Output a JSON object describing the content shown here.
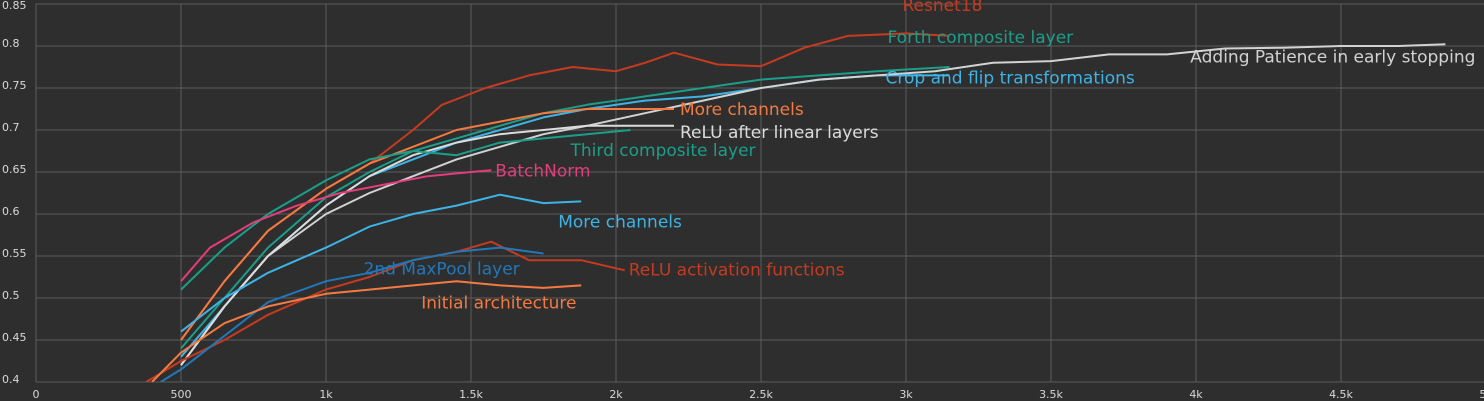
{
  "chart_data": {
    "type": "line",
    "grid": true,
    "xlim": [
      0,
      5000
    ],
    "xticks": [
      0,
      500,
      {
        "value": 1000,
        "label": "1k"
      },
      {
        "value": 1500,
        "label": "1.5k"
      },
      {
        "value": 2000,
        "label": "2k"
      },
      {
        "value": 2500,
        "label": "2.5k"
      },
      {
        "value": 3000,
        "label": "3k"
      },
      {
        "value": 3500,
        "label": "3.5k"
      },
      {
        "value": 4000,
        "label": "4k"
      },
      {
        "value": 4500,
        "label": "4.5k"
      },
      {
        "value": 5000,
        "label": "5k"
      }
    ],
    "ylim": [
      0.4,
      0.85
    ],
    "yticks": [
      0.4,
      0.45,
      0.5,
      0.55,
      0.6,
      0.65,
      0.7,
      0.75,
      0.8,
      0.85
    ],
    "series": [
      {
        "name": "Resnet18",
        "color": "#c63b1f",
        "x": [
          500,
          650,
          800,
          1000,
          1150,
          1300,
          1400,
          1550,
          1700,
          1850,
          2000,
          2100,
          2200,
          2350,
          2500,
          2650,
          2800,
          3000,
          3150
        ],
        "values": [
          0.45,
          0.52,
          0.58,
          0.63,
          0.66,
          0.7,
          0.73,
          0.75,
          0.765,
          0.775,
          0.77,
          0.78,
          0.792,
          0.778,
          0.776,
          0.798,
          0.812,
          0.815,
          0.812
        ]
      },
      {
        "name": "Forth composite layer",
        "color": "#1b9e8a",
        "x": [
          500,
          650,
          800,
          1000,
          1150,
          1300,
          1450,
          1600,
          1750,
          1900,
          2100,
          2300,
          2500,
          2700,
          2900,
          3150
        ],
        "values": [
          0.44,
          0.5,
          0.56,
          0.62,
          0.65,
          0.675,
          0.69,
          0.705,
          0.72,
          0.73,
          0.74,
          0.75,
          0.76,
          0.765,
          0.77,
          0.775
        ]
      },
      {
        "name": "Crop and flip transformations",
        "color": "#3cb4e6",
        "x": [
          500,
          650,
          800,
          1000,
          1150,
          1300,
          1450,
          1600,
          1750,
          1900,
          2100,
          2300,
          2500,
          2700,
          2900,
          3150
        ],
        "values": [
          0.43,
          0.49,
          0.55,
          0.61,
          0.645,
          0.665,
          0.685,
          0.7,
          0.715,
          0.725,
          0.735,
          0.74,
          0.75,
          0.76,
          0.765,
          0.765
        ]
      },
      {
        "name": "Adding Patience in early stopping",
        "color": "#d2d2d2",
        "x": [
          500,
          650,
          800,
          1000,
          1150,
          1300,
          1450,
          1600,
          1750,
          1900,
          2100,
          2300,
          2500,
          2700,
          2900,
          3100,
          3300,
          3500,
          3700,
          3900,
          4100,
          4300,
          4500,
          4700,
          4860
        ],
        "values": [
          0.42,
          0.49,
          0.55,
          0.6,
          0.625,
          0.645,
          0.665,
          0.68,
          0.695,
          0.705,
          0.72,
          0.735,
          0.75,
          0.76,
          0.765,
          0.77,
          0.78,
          0.782,
          0.79,
          0.79,
          0.797,
          0.798,
          0.8,
          0.8,
          0.802
        ]
      },
      {
        "name": "More channels",
        "color": "#f47a42",
        "x": [
          500,
          650,
          800,
          1000,
          1150,
          1300,
          1450,
          1600,
          1750,
          1900,
          2050,
          2200
        ],
        "values": [
          0.45,
          0.52,
          0.58,
          0.63,
          0.66,
          0.68,
          0.7,
          0.71,
          0.72,
          0.725,
          0.725,
          0.725
        ]
      },
      {
        "name": "ReLU after linear layers",
        "color": "#dcdcdc",
        "x": [
          500,
          650,
          800,
          1000,
          1150,
          1300,
          1450,
          1600,
          1750,
          1900,
          2050,
          2200
        ],
        "values": [
          0.42,
          0.49,
          0.55,
          0.61,
          0.645,
          0.67,
          0.685,
          0.695,
          0.7,
          0.705,
          0.705,
          0.705
        ]
      },
      {
        "name": "Third composite layer",
        "color": "#1b9e8a",
        "x": [
          500,
          650,
          800,
          1000,
          1150,
          1300,
          1450,
          1600,
          1750,
          1900,
          2050
        ],
        "values": [
          0.51,
          0.56,
          0.6,
          0.64,
          0.665,
          0.675,
          0.67,
          0.685,
          0.69,
          0.695,
          0.7
        ]
      },
      {
        "name": "BatchNorm",
        "color": "#e33d7a",
        "x": [
          500,
          600,
          750,
          900,
          1050,
          1200,
          1350,
          1500,
          1570
        ],
        "values": [
          0.52,
          0.56,
          0.59,
          0.61,
          0.625,
          0.635,
          0.645,
          0.65,
          0.652
        ]
      },
      {
        "name": "More channels",
        "color": "#3cb4e6",
        "x": [
          500,
          650,
          800,
          1000,
          1150,
          1300,
          1450,
          1600,
          1750,
          1880
        ],
        "values": [
          0.46,
          0.5,
          0.53,
          0.56,
          0.585,
          0.6,
          0.61,
          0.623,
          0.613,
          0.615
        ]
      },
      {
        "name": "ReLU activation functions",
        "color": "#c63b1f",
        "x": [
          380,
          500,
          650,
          800,
          1000,
          1150,
          1300,
          1450,
          1570,
          1700,
          1880,
          2030
        ],
        "values": [
          0.4,
          0.425,
          0.45,
          0.48,
          0.51,
          0.525,
          0.545,
          0.555,
          0.567,
          0.545,
          0.545,
          0.533
        ]
      },
      {
        "name": "2nd MaxPool layer",
        "color": "#2277b8",
        "x": [
          430,
          500,
          650,
          800,
          1000,
          1150,
          1300,
          1450,
          1600,
          1750
        ],
        "values": [
          0.4,
          0.415,
          0.455,
          0.495,
          0.52,
          0.53,
          0.545,
          0.555,
          0.56,
          0.553
        ]
      },
      {
        "name": "Initial architecture",
        "color": "#f47a42",
        "x": [
          400,
          500,
          650,
          800,
          1000,
          1150,
          1300,
          1450,
          1600,
          1750,
          1880
        ],
        "values": [
          0.4,
          0.435,
          0.47,
          0.49,
          0.505,
          0.51,
          0.515,
          0.52,
          0.515,
          0.512,
          0.515
        ]
      }
    ]
  }
}
